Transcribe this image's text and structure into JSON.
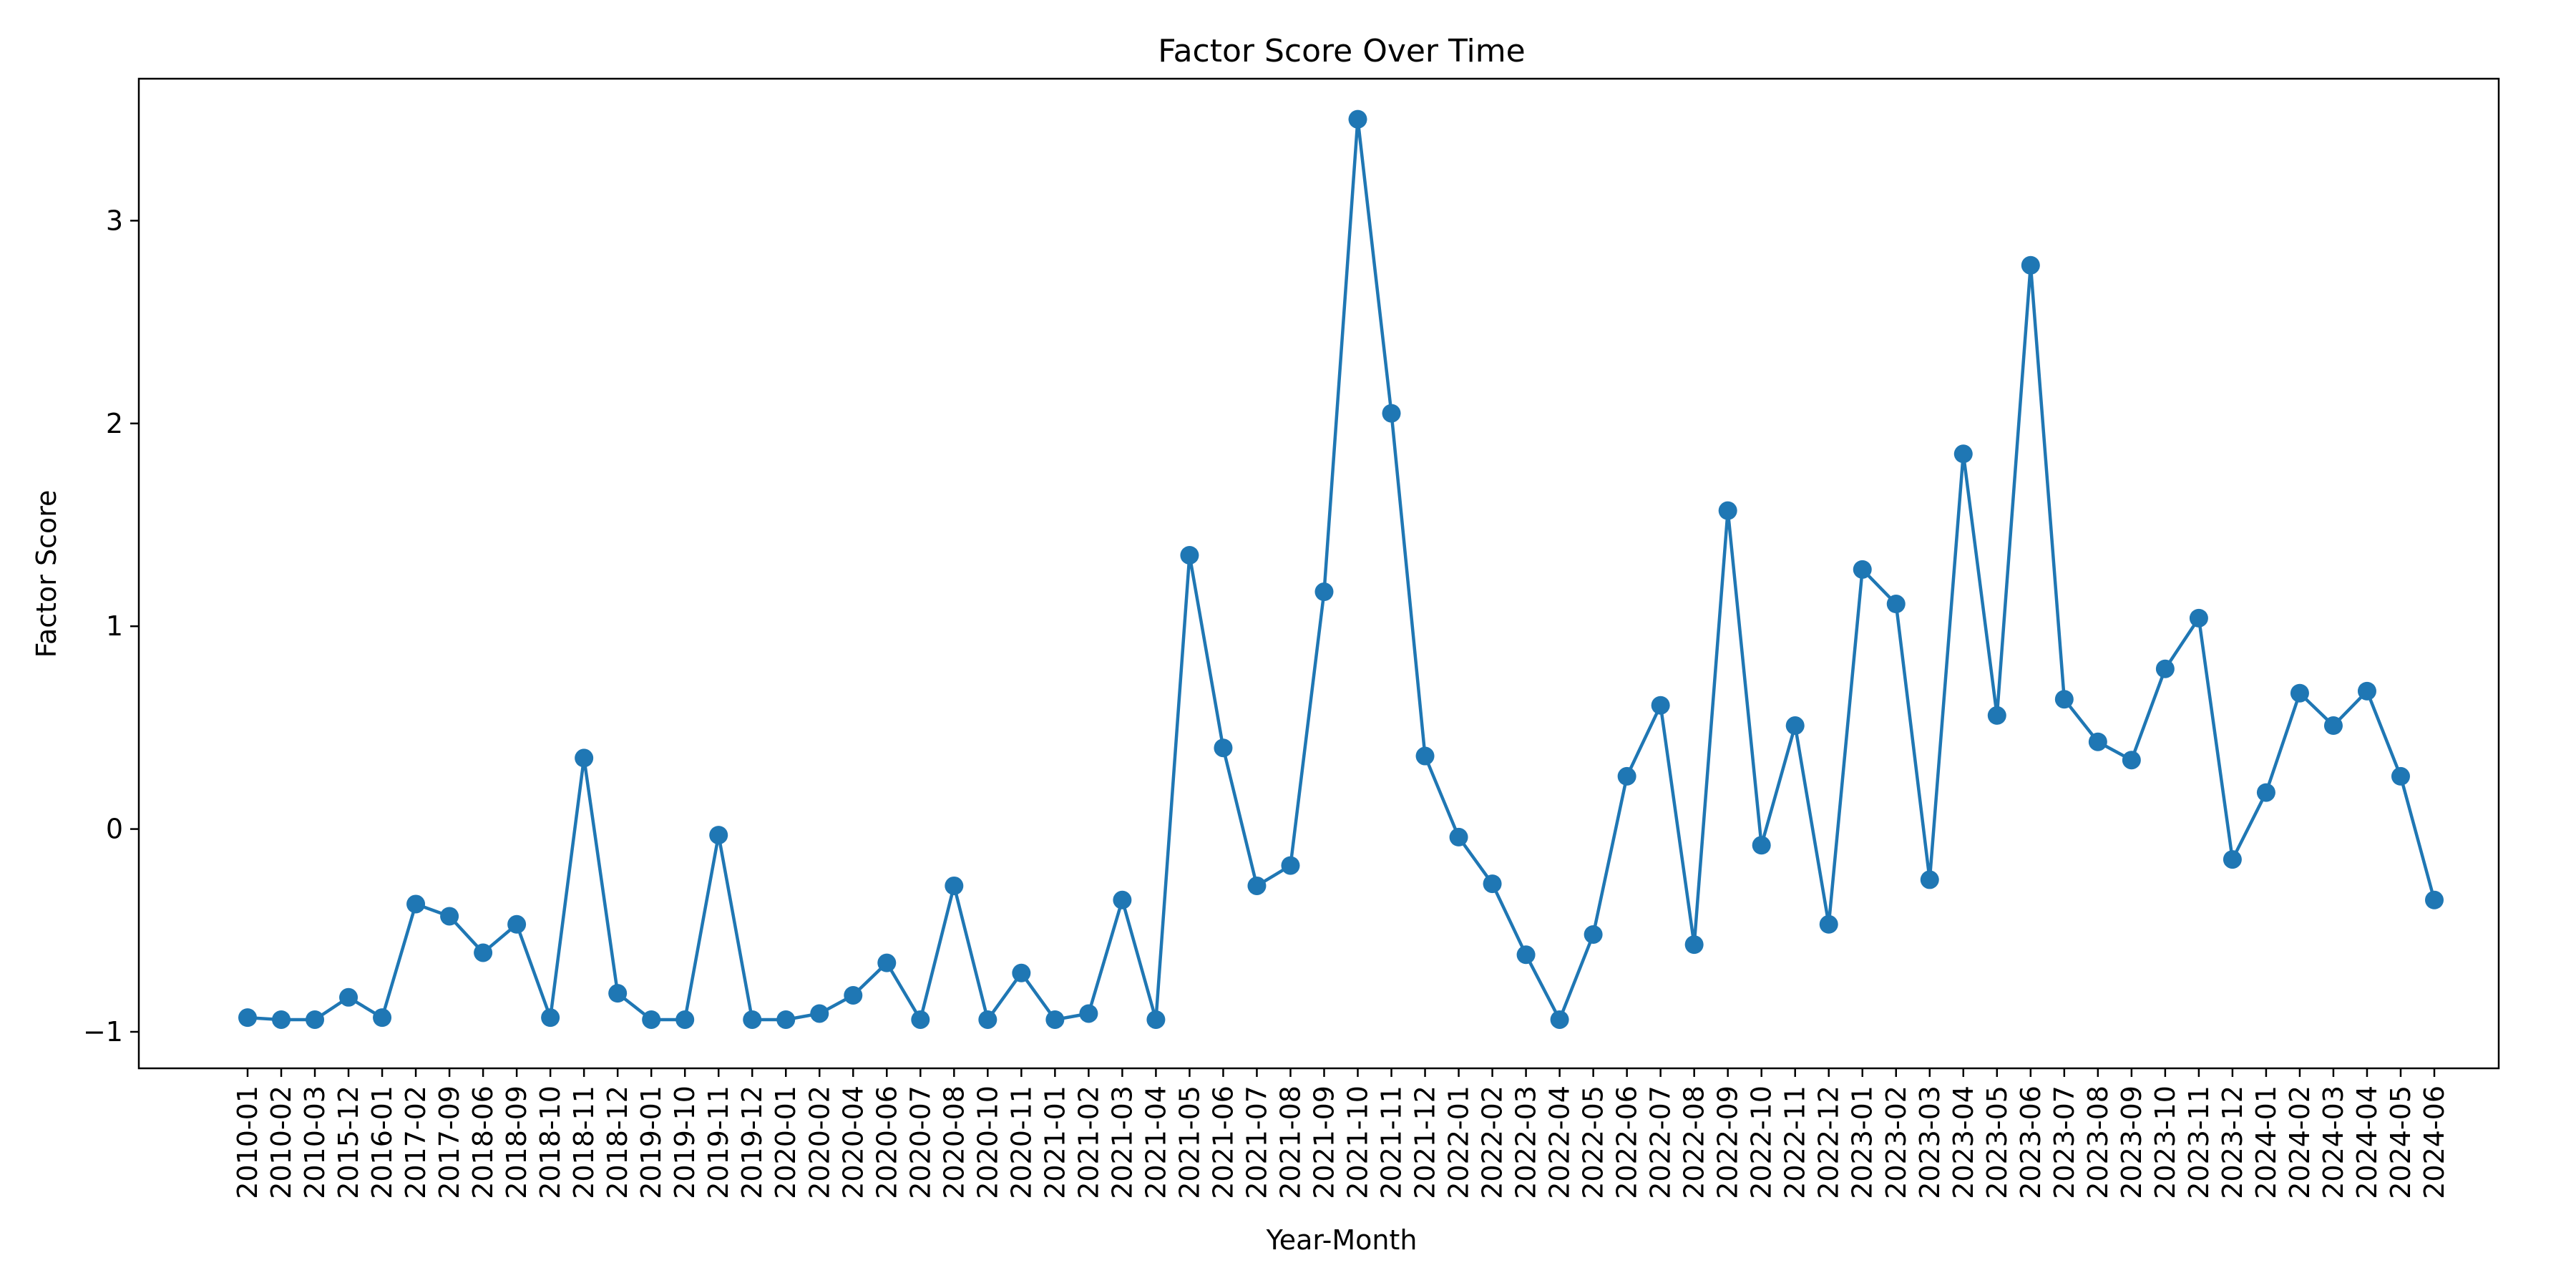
{
  "chart_data": {
    "type": "line",
    "title": "Factor Score Over Time",
    "xlabel": "Year-Month",
    "ylabel": "Factor Score",
    "ylim": [
      -1.18,
      3.7
    ],
    "yticks": [
      -1,
      0,
      1,
      2,
      3
    ],
    "ytick_labels": [
      "−1",
      "0",
      "1",
      "2",
      "3"
    ],
    "grid": false,
    "line_color": "#1f77b4",
    "categories": [
      "2010-01",
      "2010-02",
      "2010-03",
      "2015-12",
      "2016-01",
      "2017-02",
      "2017-09",
      "2018-06",
      "2018-09",
      "2018-10",
      "2018-11",
      "2018-12",
      "2019-01",
      "2019-10",
      "2019-11",
      "2019-12",
      "2020-01",
      "2020-02",
      "2020-04",
      "2020-06",
      "2020-07",
      "2020-08",
      "2020-10",
      "2020-11",
      "2021-01",
      "2021-02",
      "2021-03",
      "2021-04",
      "2021-05",
      "2021-06",
      "2021-07",
      "2021-08",
      "2021-09",
      "2021-10",
      "2021-11",
      "2021-12",
      "2022-01",
      "2022-02",
      "2022-03",
      "2022-04",
      "2022-05",
      "2022-06",
      "2022-07",
      "2022-08",
      "2022-09",
      "2022-10",
      "2022-11",
      "2022-12",
      "2023-01",
      "2023-02",
      "2023-03",
      "2023-04",
      "2023-05",
      "2023-06",
      "2023-07",
      "2023-08",
      "2023-09",
      "2023-10",
      "2023-11",
      "2023-12",
      "2024-01",
      "2024-02",
      "2024-03",
      "2024-04",
      "2024-05",
      "2024-06"
    ],
    "values": [
      -0.93,
      -0.94,
      -0.94,
      -0.83,
      -0.93,
      -0.37,
      -0.43,
      -0.61,
      -0.47,
      -0.93,
      0.35,
      -0.81,
      -0.94,
      -0.94,
      -0.03,
      -0.94,
      -0.94,
      -0.91,
      -0.82,
      -0.66,
      -0.94,
      -0.28,
      -0.94,
      -0.71,
      -0.94,
      -0.91,
      -0.35,
      -0.94,
      1.35,
      0.4,
      -0.28,
      -0.18,
      1.17,
      3.5,
      2.05,
      0.36,
      -0.04,
      -0.27,
      -0.62,
      -0.94,
      -0.52,
      0.26,
      0.61,
      -0.57,
      1.57,
      -0.08,
      0.51,
      -0.47,
      1.28,
      1.11,
      -0.25,
      1.85,
      0.56,
      2.78,
      0.64,
      0.43,
      0.34,
      0.79,
      1.04,
      -0.15,
      0.18,
      0.67,
      0.51,
      0.68,
      0.26,
      -0.35
    ]
  }
}
